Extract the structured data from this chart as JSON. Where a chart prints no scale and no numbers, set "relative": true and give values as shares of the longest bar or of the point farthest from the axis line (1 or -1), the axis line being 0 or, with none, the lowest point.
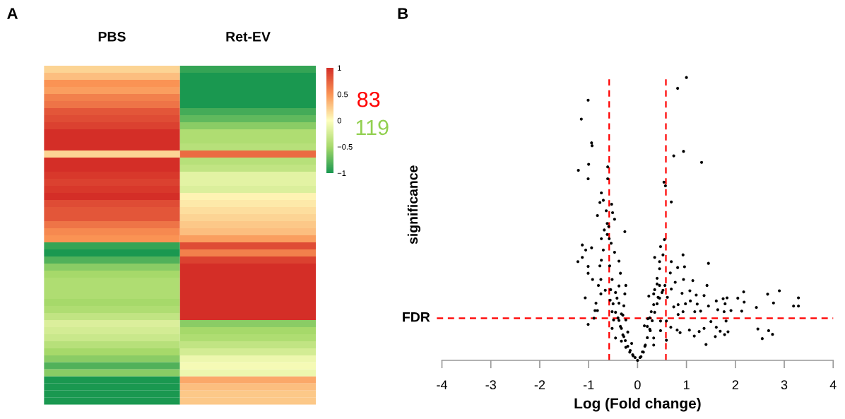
{
  "chart_data": [
    {
      "type": "heatmap",
      "categories": [
        "PBS",
        "Ret-EV"
      ],
      "y_categories": [
        null,
        null,
        null,
        null,
        null,
        null,
        null,
        null,
        null,
        null,
        null,
        null,
        null,
        null,
        null,
        null,
        null,
        null,
        null,
        null,
        null,
        null,
        null,
        null,
        null,
        null,
        null,
        null,
        null,
        null,
        null,
        null,
        null,
        null,
        null,
        null,
        null,
        null,
        null,
        null,
        null,
        null,
        null,
        null,
        null,
        null,
        null,
        null
      ],
      "cells": [
        [
          0.2,
          -0.9
        ],
        [
          0.3,
          -1
        ],
        [
          0.5,
          -1
        ],
        [
          0.45,
          -1
        ],
        [
          0.6,
          -1
        ],
        [
          0.65,
          -1
        ],
        [
          0.8,
          -0.85
        ],
        [
          0.85,
          -0.75
        ],
        [
          0.9,
          -0.6
        ],
        [
          1,
          -0.45
        ],
        [
          1,
          -0.45
        ],
        [
          1,
          -0.4
        ],
        [
          0.2,
          0.7
        ],
        [
          1,
          -0.4
        ],
        [
          1,
          -0.35
        ],
        [
          0.95,
          -0.15
        ],
        [
          0.9,
          -0.15
        ],
        [
          0.95,
          -0.2
        ],
        [
          1,
          0.05
        ],
        [
          0.85,
          0.1
        ],
        [
          0.8,
          0.15
        ],
        [
          0.8,
          0.2
        ],
        [
          0.65,
          0.25
        ],
        [
          0.55,
          0.3
        ],
        [
          0.5,
          0.45
        ],
        [
          -0.9,
          0.85
        ],
        [
          -1,
          0.6
        ],
        [
          -0.8,
          0.9
        ],
        [
          -0.6,
          1
        ],
        [
          -0.5,
          1
        ],
        [
          -0.45,
          1
        ],
        [
          -0.45,
          1
        ],
        [
          -0.45,
          1
        ],
        [
          -0.5,
          1
        ],
        [
          -0.45,
          1
        ],
        [
          -0.35,
          1
        ],
        [
          -0.2,
          -0.6
        ],
        [
          -0.25,
          -0.5
        ],
        [
          -0.3,
          -0.45
        ],
        [
          -0.4,
          -0.35
        ],
        [
          -0.5,
          -0.25
        ],
        [
          -0.6,
          -0.1
        ],
        [
          -0.8,
          -0.05
        ],
        [
          -0.6,
          -0.1
        ],
        [
          -1,
          0.4
        ],
        [
          -1,
          0.3
        ],
        [
          -1,
          0.25
        ],
        [
          -1,
          0.25
        ]
      ],
      "clim": [
        -1,
        1
      ],
      "cticks": [
        1,
        0.5,
        0,
        {
          "value": -0.5,
          "label": "−0.5"
        },
        {
          "value": -1,
          "label": "−1"
        }
      ],
      "annotations": [
        "A",
        "83",
        "119"
      ]
    },
    {
      "type": "scatter",
      "xlabel": "Log (Fold change)",
      "ylabel": "significance",
      "relative": true,
      "xlim": [
        -4,
        4
      ],
      "xticks": [
        -4,
        -3,
        -2,
        -1,
        0,
        1,
        2,
        3,
        4
      ],
      "tick_labels": "x",
      "grid": false,
      "legend": false,
      "marker": "circle",
      "ref_lines": [
        {
          "axis": "x",
          "value": -0.58,
          "label": null,
          "color": "#ff0000",
          "line_style": "dashed"
        },
        {
          "axis": "x",
          "value": 0.58,
          "label": null,
          "color": "#ff0000",
          "line_style": "dashed"
        },
        {
          "axis": "y",
          "value": 0.149,
          "label": "FDR",
          "color": "#ff0000",
          "line_style": "dashed"
        }
      ],
      "annotations": [
        "B"
      ],
      "series": [
        {
          "color": "#000000",
          "x": [
            -1.01,
            -1.15,
            -0.94,
            -0.93,
            -1.0,
            -1.21,
            -1.01,
            -0.61,
            -0.61,
            -0.74,
            -0.7,
            -0.77,
            -0.53,
            -0.64,
            -0.51,
            -0.82,
            -0.47,
            -0.62,
            -0.59,
            -0.68,
            -0.26,
            -0.62,
            -0.74,
            -0.58,
            -1.13,
            -0.94,
            -1.06,
            -0.54,
            -0.7,
            -0.47,
            -1.13,
            -1.22,
            -0.74,
            -1.01,
            -0.77,
            -0.57,
            -0.38,
            -1.01,
            -0.92,
            -0.35,
            -0.75,
            -0.52,
            -0.8,
            -0.38,
            -0.24,
            -0.66,
            -0.75,
            -0.45,
            -0.26,
            -1.07,
            -0.56,
            -0.38,
            -0.85,
            -0.28,
            -0.87,
            -0.82,
            -0.52,
            -0.33,
            -0.89,
            -1.01,
            -0.49,
            -0.38,
            -0.24,
            -0.52,
            -0.33,
            -0.45,
            -0.28,
            -0.33,
            -0.24,
            -0.16,
            -0.09,
            0,
            0.07,
            0.12,
            0.16,
            0.14,
            0.21,
            0.28,
            0.33,
            0.33,
            0.26,
            0.47,
            0.47,
            0.59,
            0.59,
            0.33,
            0.23,
            0.42,
            0.33,
            0.45,
            0.56,
            0.52,
            0.4,
            0.61,
            0.45,
            0.45,
            0.35,
            0.52,
            0.47,
            0.55,
            0.69,
            0.54,
            0.57,
            0.74,
            0.94,
            0.82,
            1.0,
            1.31,
            0.69,
            0.93,
            0.82,
            0.96,
            1.45,
            0.94,
            0.67,
            0.77,
            1.13,
            1.42,
            1.07,
            1.2,
            0.69,
            0.91,
            1.36,
            1.08,
            0.83,
            0.98,
            1.22,
            1.45,
            0.74,
            0.93,
            1.17,
            1.29,
            0.83,
            1.61,
            1.75,
            1.83,
            1.79,
            1.64,
            1.77,
            1.91,
            2.05,
            2.17,
            2.18,
            2.13,
            2.43,
            2.66,
            2.78,
            2.9,
            3.19,
            3.29,
            3.29,
            0.68,
            0.81,
            0.87,
            1.06,
            1.16,
            1.26,
            1.36,
            1.4,
            1.5,
            1.59,
            1.61,
            1.69,
            1.78,
            1.85,
            1.81,
            2.46,
            2.55,
            2.68,
            2.76,
            -0.55,
            -0.5,
            -0.45,
            -0.4,
            -0.35,
            -0.3,
            -0.25,
            -0.2,
            -0.15,
            -0.1,
            -0.05,
            -0.42,
            -0.3,
            -0.2,
            -0.12,
            0.05,
            0.1,
            0.15,
            0.2,
            0.25,
            0.3,
            0.35,
            0.4,
            0.45,
            0.5,
            0.25,
            0.2,
            0.35,
            0.4
          ],
          "values": [
            0.92,
            0.853,
            0.769,
            0.759,
            0.693,
            0.672,
            0.642,
            0.684,
            0.642,
            0.592,
            0.566,
            0.558,
            0.552,
            0.529,
            0.522,
            0.512,
            0.499,
            0.484,
            0.473,
            0.461,
            0.455,
            0.445,
            0.43,
            0.43,
            0.408,
            0.398,
            0.39,
            0.414,
            0.39,
            0.382,
            0.364,
            0.349,
            0.354,
            0.332,
            0.334,
            0.334,
            0.351,
            0.308,
            0.286,
            0.308,
            0.286,
            0.286,
            0.265,
            0.263,
            0.265,
            0.248,
            0.235,
            0.24,
            0.235,
            0.221,
            0.213,
            0.202,
            0.202,
            0.193,
            0.176,
            0.176,
            0.172,
            0.164,
            0.149,
            0.127,
            0.143,
            0.141,
            0.143,
            0.113,
            0.113,
            0.079,
            0.084,
            0.068,
            0.046,
            0.029,
            0.016,
            0,
            0.013,
            0.029,
            0.054,
            0.122,
            0.147,
            0.172,
            0.054,
            0.079,
            0.105,
            0.139,
            0.105,
            0.071,
            0.139,
            0.197,
            0.227,
            0.223,
            0.235,
            0.265,
            0.265,
            0.248,
            0.29,
            0.223,
            0.324,
            0.349,
            0.364,
            0.373,
            0.402,
            0.427,
            0.56,
            0.63,
            0.617,
            0.723,
            0.739,
            0.962,
            1,
            0.7,
            0.349,
            0.373,
            0.328,
            0.331,
            0.343,
            0.286,
            0.309,
            0.276,
            0.282,
            0.265,
            0.246,
            0.231,
            0.252,
            0.237,
            0.229,
            0.21,
            0.197,
            0.2,
            0.199,
            0.192,
            0.189,
            0.172,
            0.172,
            0.174,
            0.162,
            0.21,
            0.218,
            0.221,
            0.2,
            0.179,
            0.172,
            0.176,
            0.22,
            0.242,
            0.206,
            0.174,
            0.187,
            0.234,
            0.203,
            0.246,
            0.192,
            0.221,
            0.192,
            0.117,
            0.107,
            0.098,
            0.107,
            0.086,
            0.102,
            0.113,
            0.056,
            0.137,
            0.084,
            0.117,
            0.103,
            0.091,
            0.101,
            0.139,
            0.111,
            0.077,
            0.105,
            0.092,
            0.25,
            0.2,
            0.17,
            0.15,
            0.12,
            0.09,
            0.07,
            0.05,
            0.035,
            0.02,
            0.01,
            0.22,
            0.16,
            0.1,
            0.06,
            0.01,
            0.03,
            0.05,
            0.08,
            0.11,
            0.14,
            0.17,
            0.2,
            0.22,
            0.24,
            0.15,
            0.12,
            0.25,
            0.27
          ]
        }
      ]
    }
  ]
}
